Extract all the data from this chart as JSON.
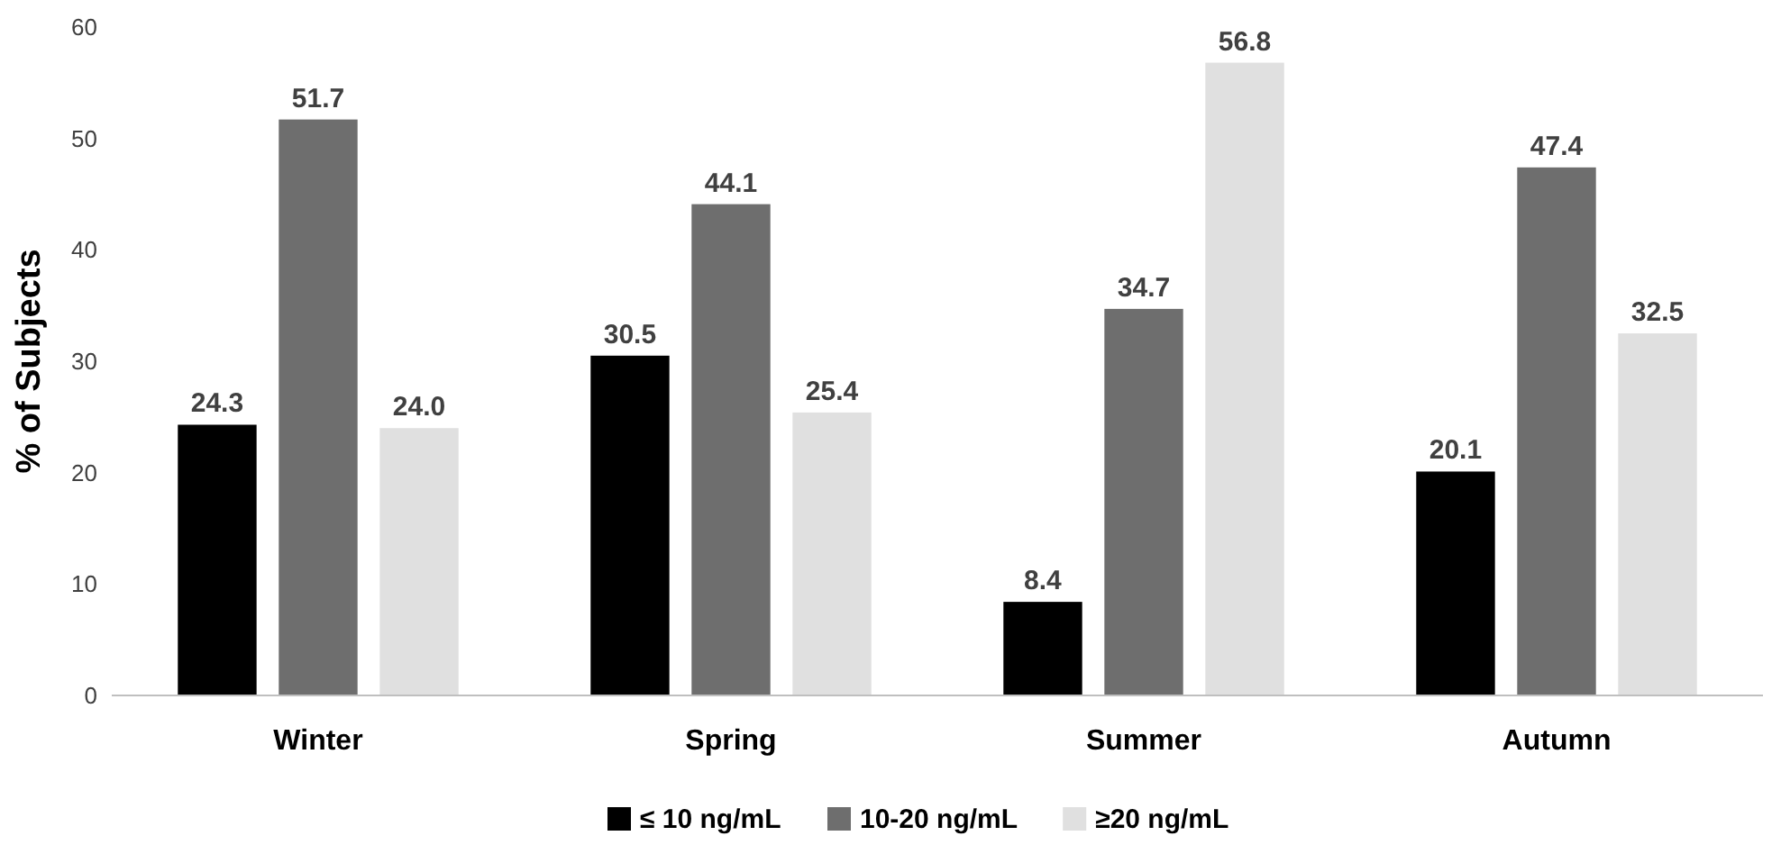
{
  "chart_data": {
    "type": "bar",
    "ylabel": "% of Subjects",
    "categories": [
      "Winter",
      "Spring",
      "Summer",
      "Autumn"
    ],
    "series": [
      {
        "name": "≤ 10 ng/mL",
        "color": "#000000",
        "values": [
          24.3,
          30.5,
          8.4,
          20.1
        ]
      },
      {
        "name": "10-20 ng/mL",
        "color": "#6e6e6e",
        "values": [
          51.7,
          44.1,
          34.7,
          47.4
        ]
      },
      {
        "name": "≥20 ng/mL",
        "color": "#e0e0e0",
        "values": [
          24.0,
          25.4,
          56.8,
          32.5
        ]
      }
    ],
    "value_labels": [
      [
        "24.3",
        "30.5",
        "8.4",
        "20.1"
      ],
      [
        "51.7",
        "44.1",
        "34.7",
        "47.4"
      ],
      [
        "24.0",
        "25.4",
        "56.8",
        "32.5"
      ]
    ],
    "ylim": [
      0,
      60
    ],
    "yticks": [
      0,
      10,
      20,
      30,
      40,
      50,
      60
    ],
    "grid": false,
    "legend": "bottom"
  }
}
